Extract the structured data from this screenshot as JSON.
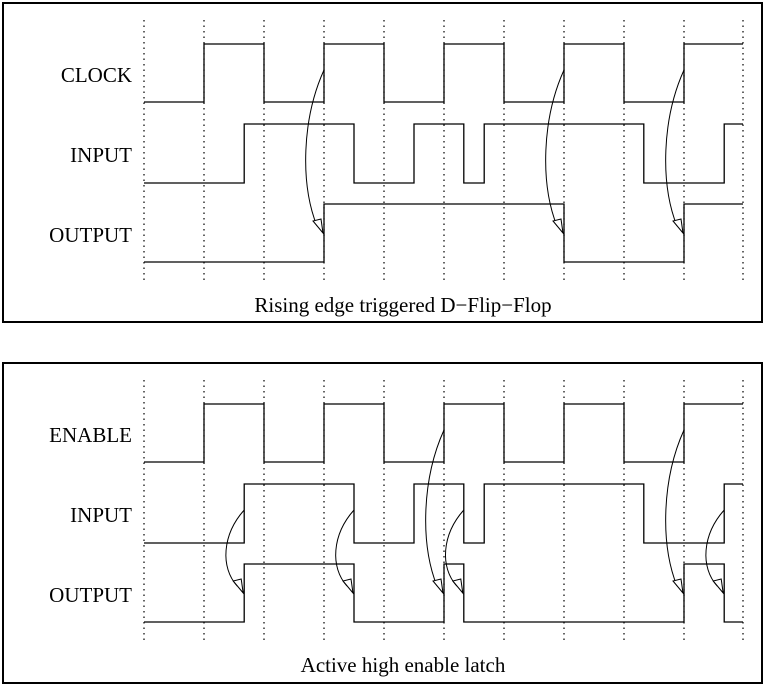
{
  "panels": [
    {
      "id": "dff",
      "caption": "Rising edge triggered D−Flip−Flop",
      "signals": [
        {
          "name": "CLOCK",
          "transitions": [
            1,
            2,
            3,
            4,
            5,
            6,
            7,
            8,
            9
          ],
          "initial": 0
        },
        {
          "name": "INPUT",
          "transitions": [
            1.67,
            3.5,
            4.5,
            5.33,
            5.67,
            8.33,
            9.67
          ],
          "initial": 0
        },
        {
          "name": "OUTPUT",
          "transitions": [
            3,
            7,
            9
          ],
          "initial": 0
        }
      ],
      "arrows": [
        [
          0,
          3,
          2,
          3
        ],
        [
          0,
          7,
          2,
          7
        ],
        [
          0,
          9,
          2,
          9
        ]
      ]
    },
    {
      "id": "latch",
      "caption": "Active high enable latch",
      "signals": [
        {
          "name": "ENABLE",
          "transitions": [
            1,
            2,
            3,
            4,
            5,
            6,
            7,
            8,
            9
          ],
          "initial": 0
        },
        {
          "name": "INPUT",
          "transitions": [
            1.67,
            3.5,
            4.5,
            5.33,
            5.67,
            8.33,
            9.67
          ],
          "initial": 0
        },
        {
          "name": "OUTPUT",
          "transitions": [
            1.67,
            3.5,
            5,
            5.33,
            9,
            9.67
          ],
          "initial": 0
        }
      ],
      "arrows": [
        [
          1,
          1.67,
          2,
          1.67
        ],
        [
          1,
          3.5,
          2,
          3.5
        ],
        [
          0,
          5,
          2,
          5
        ],
        [
          1,
          5.33,
          2,
          5.33
        ],
        [
          0,
          9,
          2,
          9
        ],
        [
          1,
          9.67,
          2,
          9.67
        ]
      ]
    }
  ]
}
